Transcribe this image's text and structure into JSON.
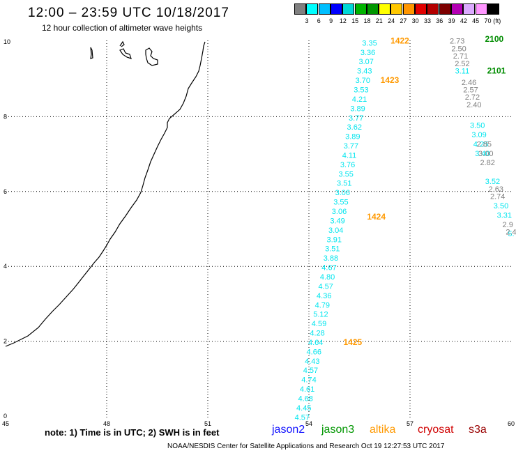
{
  "title": "12:00 – 23:59 UTC 10/18/2017",
  "subtitle": "12 hour collection of altimeter wave heights",
  "legend": {
    "unit": "(ft)",
    "colors": [
      "#808080",
      "#00ffff",
      "#00bfff",
      "#0000ff",
      "#00d7d7",
      "#00b400",
      "#009600",
      "#ffff00",
      "#ffc800",
      "#ff9600",
      "#e10000",
      "#b40000",
      "#7d0000",
      "#b400b4",
      "#dcaaff",
      "#ff96ff",
      "#000000"
    ],
    "labels": [
      "3",
      "6",
      "9",
      "12",
      "15",
      "18",
      "21",
      "24",
      "27",
      "30",
      "33",
      "36",
      "39",
      "42",
      "45",
      "70"
    ]
  },
  "axes": {
    "x_ticks": [
      "45",
      "48",
      "51",
      "54",
      "57",
      "60"
    ],
    "y_ticks": [
      "0",
      "2",
      "4",
      "6",
      "8",
      "10"
    ]
  },
  "tracks": [
    {
      "color": "#00e5ee",
      "points": [
        {
          "lon": 55.8,
          "lat": 9.9,
          "v": "3.35"
        },
        {
          "lon": 55.75,
          "lat": 9.65,
          "v": "3.36"
        },
        {
          "lon": 55.7,
          "lat": 9.4,
          "v": "3.07"
        },
        {
          "lon": 55.65,
          "lat": 9.15,
          "v": "3.43"
        },
        {
          "lon": 55.6,
          "lat": 8.9,
          "v": "3.70"
        },
        {
          "lon": 55.55,
          "lat": 8.65,
          "v": "3.53"
        },
        {
          "lon": 55.5,
          "lat": 8.4,
          "v": "4.21"
        },
        {
          "lon": 55.45,
          "lat": 8.15,
          "v": "3.89"
        },
        {
          "lon": 55.4,
          "lat": 7.9,
          "v": "3.77"
        },
        {
          "lon": 55.35,
          "lat": 7.65,
          "v": "3.62"
        },
        {
          "lon": 55.3,
          "lat": 7.4,
          "v": "3.89"
        },
        {
          "lon": 55.25,
          "lat": 7.15,
          "v": "3.77"
        },
        {
          "lon": 55.2,
          "lat": 6.9,
          "v": "4.11"
        },
        {
          "lon": 55.15,
          "lat": 6.65,
          "v": "3.76"
        },
        {
          "lon": 55.1,
          "lat": 6.4,
          "v": "3.55"
        },
        {
          "lon": 55.05,
          "lat": 6.15,
          "v": "3.51"
        },
        {
          "lon": 55.0,
          "lat": 5.9,
          "v": "3.06"
        },
        {
          "lon": 54.95,
          "lat": 5.65,
          "v": "3.55"
        },
        {
          "lon": 54.9,
          "lat": 5.4,
          "v": "3.06"
        },
        {
          "lon": 54.85,
          "lat": 5.15,
          "v": "3.49"
        },
        {
          "lon": 54.8,
          "lat": 4.9,
          "v": "3.04"
        },
        {
          "lon": 54.75,
          "lat": 4.65,
          "v": "3.91"
        },
        {
          "lon": 54.7,
          "lat": 4.4,
          "v": "3.51"
        },
        {
          "lon": 54.65,
          "lat": 4.15,
          "v": "3.88"
        },
        {
          "lon": 54.6,
          "lat": 3.9,
          "v": "4.67"
        },
        {
          "lon": 54.55,
          "lat": 3.65,
          "v": "4.80"
        },
        {
          "lon": 54.5,
          "lat": 3.4,
          "v": "4.57"
        },
        {
          "lon": 54.45,
          "lat": 3.15,
          "v": "4.36"
        },
        {
          "lon": 54.4,
          "lat": 2.9,
          "v": "4.79"
        },
        {
          "lon": 54.35,
          "lat": 2.65,
          "v": "5.12"
        },
        {
          "lon": 54.3,
          "lat": 2.4,
          "v": "4.59"
        },
        {
          "lon": 54.25,
          "lat": 2.15,
          "v": "4.28"
        },
        {
          "lon": 54.2,
          "lat": 1.9,
          "v": "4.64"
        },
        {
          "lon": 54.15,
          "lat": 1.65,
          "v": "4.66"
        },
        {
          "lon": 54.1,
          "lat": 1.4,
          "v": "4.43"
        },
        {
          "lon": 54.05,
          "lat": 1.15,
          "v": "4.57"
        },
        {
          "lon": 54.0,
          "lat": 0.9,
          "v": "4.74"
        },
        {
          "lon": 53.95,
          "lat": 0.65,
          "v": "4.61"
        },
        {
          "lon": 53.9,
          "lat": 0.4,
          "v": "4.68"
        },
        {
          "lon": 53.85,
          "lat": 0.15,
          "v": "4.45"
        },
        {
          "lon": 53.8,
          "lat": -0.1,
          "v": "4.57"
        }
      ]
    },
    {
      "color": "#00e5ee",
      "points": [
        {
          "lon": 59.0,
          "lat": 7.7,
          "v": "3.50"
        },
        {
          "lon": 59.05,
          "lat": 7.45,
          "v": "3.09"
        },
        {
          "lon": 59.1,
          "lat": 7.2,
          "v": "4.25"
        },
        {
          "lon": 59.15,
          "lat": 6.95,
          "v": "3.40"
        },
        {
          "lon": 59.45,
          "lat": 6.2,
          "v": "3.52"
        },
        {
          "lon": 59.7,
          "lat": 5.55,
          "v": "3.50"
        },
        {
          "lon": 59.8,
          "lat": 5.3,
          "v": "3.31"
        },
        {
          "lon": 60.0,
          "lat": 4.8,
          "v": "5."
        }
      ]
    },
    {
      "color": "#808080",
      "points": [
        {
          "lon": 58.4,
          "lat": 9.95,
          "v": "2.73"
        },
        {
          "lon": 58.45,
          "lat": 9.75,
          "v": "2.50"
        },
        {
          "lon": 58.5,
          "lat": 9.55,
          "v": "2.71"
        },
        {
          "lon": 58.55,
          "lat": 9.35,
          "v": "2.52"
        },
        {
          "lon": 58.75,
          "lat": 8.85,
          "v": "2.46"
        },
        {
          "lon": 58.8,
          "lat": 8.65,
          "v": "2.57"
        },
        {
          "lon": 58.85,
          "lat": 8.45,
          "v": "2.72"
        },
        {
          "lon": 58.9,
          "lat": 8.25,
          "v": "2.40"
        },
        {
          "lon": 59.2,
          "lat": 7.2,
          "v": "2.85"
        },
        {
          "lon": 59.25,
          "lat": 6.95,
          "v": "3.00"
        },
        {
          "lon": 59.3,
          "lat": 6.7,
          "v": "2.82"
        },
        {
          "lon": 59.55,
          "lat": 6.0,
          "v": "2.63"
        },
        {
          "lon": 59.6,
          "lat": 5.8,
          "v": "2.74"
        },
        {
          "lon": 59.9,
          "lat": 5.05,
          "v": "2.9"
        },
        {
          "lon": 60.0,
          "lat": 4.85,
          "v": "2.4"
        }
      ]
    },
    {
      "color": "#00e5ee",
      "points": [
        {
          "lon": 58.55,
          "lat": 9.15,
          "v": "3.11"
        }
      ]
    }
  ],
  "time_labels": [
    {
      "text": "1422",
      "lon": 56.7,
      "lat": 9.95,
      "color": "#ff9900"
    },
    {
      "text": "1423",
      "lon": 56.4,
      "lat": 8.9,
      "color": "#ff9900"
    },
    {
      "text": "1424",
      "lon": 56.0,
      "lat": 5.25,
      "color": "#ff9900"
    },
    {
      "text": "1425",
      "lon": 55.3,
      "lat": 1.9,
      "color": "#ff9900"
    },
    {
      "text": "2100",
      "lon": 59.5,
      "lat": 10.0,
      "color": "#008c00"
    },
    {
      "text": "2101",
      "lon": 59.8,
      "lat": 9.15,
      "color": "#008c00"
    }
  ],
  "note": "note:  1) Time is in UTC;  2) SWH is in feet",
  "satellites": [
    {
      "name": "jason2",
      "color": "#1010ff",
      "left": 390
    },
    {
      "name": "jason3",
      "color": "#009600",
      "left": 461
    },
    {
      "name": "altika",
      "color": "#ff9900",
      "left": 530
    },
    {
      "name": "cryosat",
      "color": "#d00000",
      "left": 599
    },
    {
      "name": "s3a",
      "color": "#990000",
      "left": 672
    }
  ],
  "credit": "NOAA/NESDIS Center for Satellite Applications and Research     Oct 19 12:27:53 UTC 2017"
}
